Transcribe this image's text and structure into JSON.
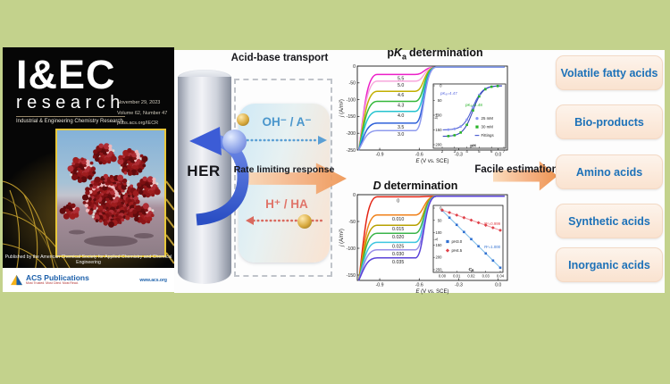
{
  "journal_cover": {
    "title": "I&EC",
    "subtitle": "research",
    "tagline": "Industrial & Engineering Chemistry Research",
    "issue_date": "November 29, 2023",
    "issue_volume": "Volume 62, Number 47",
    "issue_url": "pubs.acs.org/IECR",
    "published_line": "Published by the American Chemical Society for Applied Chemistry and Chemical Engineering",
    "publisher": "ACS Publications",
    "publisher_tagline": "Most Trusted. Most Cited. Most Read.",
    "website": "www.acs.org"
  },
  "scheme": {
    "electrode_label": "HER",
    "transport_title": "Acid-base transport",
    "response_label": "Rate limiting response",
    "base_pair": "OH⁻ / A⁻",
    "acid_pair": "H⁺ / HA",
    "estimation_label": "Facile estimation"
  },
  "chart_titles": {
    "pka_prefix": "p",
    "pka_k": "K",
    "pka_sub": "a",
    "pka_rest": "determination",
    "d_italic": "D",
    "d_rest": "determination"
  },
  "applications": [
    "Volatile fatty acids",
    "Bio-products",
    "Amino acids",
    "Synthetic acids",
    "Inorganic acids"
  ],
  "palette": {
    "background": "#c3d28c",
    "panel": "#fdfdfd",
    "app_box_fill": "#fae2cf",
    "app_box_text": "#1c71b8",
    "orange_arrow": "#f5b284",
    "base_text": "#4a96cc",
    "acid_text": "#e0756a",
    "her_arrow_blue": "#2b4fc4",
    "cover_gold": "#e8c73a"
  },
  "chart_data": [
    {
      "id": "pka-determination",
      "type": "line",
      "title": "pKa determination",
      "xlabel_italic": "E",
      "xlabel_rest": " (V vs. SCE)",
      "ylabel_italic": "j",
      "ylabel_rest": " (A/m²)",
      "xlim": [
        -1.07,
        0.07
      ],
      "ylim": [
        -250,
        0
      ],
      "xticks": [
        {
          "v": -0.9,
          "t": "-0.9"
        },
        {
          "v": -0.6,
          "t": "-0.6"
        },
        {
          "v": -0.3,
          "t": "-0.3"
        },
        {
          "v": 0.0,
          "t": "0.0"
        }
      ],
      "yticks": [
        0,
        -50,
        -100,
        -150,
        -200,
        -250
      ],
      "limit_current_top": -3,
      "series_note": "curve labels are solution pH; plateau = limiting current density A/m2",
      "series": [
        {
          "label": "5.5",
          "plateau": -25,
          "color": "#ec1fc8"
        },
        {
          "label": "5.0",
          "plateau": -45,
          "color": "#f8a8dc"
        },
        {
          "label": "4.6",
          "plateau": -75,
          "color": "#c3af00"
        },
        {
          "label": "4.3",
          "plateau": -105,
          "color": "#35b83a"
        },
        {
          "label": "4.0",
          "plateau": -135,
          "color": "#25c3cf"
        },
        {
          "label": "3.5",
          "plateau": -170,
          "color": "#2f62d9"
        },
        {
          "label": "3.0",
          "plateau": -192,
          "color": "#8f9bee"
        }
      ],
      "inset": {
        "xlabel": "pH",
        "ylabel_main": "j",
        "ylabel_sub": "0.5",
        "xlim": [
          2,
          7
        ],
        "ylim_down": [
          0,
          200
        ],
        "xticks": [
          2,
          3,
          4,
          5,
          6,
          7
        ],
        "yticks": [
          0,
          50,
          100,
          150,
          200
        ],
        "annotations": [
          {
            "text": "pKₐ=4.47",
            "color": "#5a6ae0"
          },
          {
            "text": "pKₐ=4.48",
            "color": "#2db52d"
          }
        ],
        "legend": [
          {
            "label": "25 mM",
            "marker": "circle",
            "color": "#8a97f2"
          },
          {
            "label": "30 mM",
            "marker": "square",
            "color": "#28b428"
          },
          {
            "label": "Fittings",
            "marker": "line",
            "color": "#4f5fd0"
          }
        ],
        "series": [
          {
            "name": "25 mM",
            "plateau": 150,
            "pKa": 4.47,
            "marker": "circle",
            "marker_color": "#8a97f2",
            "line_color": "#4f5fd0"
          },
          {
            "name": "30 mM",
            "plateau": 172,
            "pKa": 4.48,
            "marker": "square",
            "marker_color": "#28b428",
            "line_color": "#3a4ab8"
          }
        ],
        "marker_pH": [
          2.5,
          3.0,
          3.5,
          4.0,
          4.5,
          5.0,
          5.5,
          6.0,
          6.5
        ]
      }
    },
    {
      "id": "d-determination",
      "type": "line",
      "title": "D determination",
      "xlabel_italic": "E",
      "xlabel_rest": " (V vs. SCE)",
      "ylabel_italic": "j",
      "ylabel_rest": " (A/m²)",
      "xlim": [
        -1.07,
        0.07
      ],
      "ylim": [
        -160,
        0
      ],
      "xticks": [
        {
          "v": -0.9,
          "t": "-0.9"
        },
        {
          "v": -0.6,
          "t": "-0.6"
        },
        {
          "v": -0.3,
          "t": "-0.3"
        },
        {
          "v": 0.0,
          "t": "0.0"
        }
      ],
      "yticks": [
        0,
        -50,
        -100,
        -150
      ],
      "limit_current_top": -3,
      "series_note": "curve labels are buffer concentration (M)",
      "series": [
        {
          "label": "0",
          "plateau": -4,
          "color": "#e42313"
        },
        {
          "label": "0.010",
          "plateau": -38,
          "color": "#f08019"
        },
        {
          "label": "0.015",
          "plateau": -57,
          "color": "#b7a100"
        },
        {
          "label": "0.020",
          "plateau": -72,
          "color": "#3bb54a"
        },
        {
          "label": "0.025",
          "plateau": -89,
          "color": "#3fc6e0"
        },
        {
          "label": "0.030",
          "plateau": -103,
          "color": "#9a8fe8"
        },
        {
          "label": "0.035",
          "plateau": -118,
          "color": "#5a43d8"
        }
      ],
      "inset": {
        "xlabel_main": "C",
        "xlabel_sub": "B",
        "ylabel_main": "j",
        "ylabel_sub": "L",
        "xlim": [
          0,
          0.04
        ],
        "ylim_down": [
          0,
          250
        ],
        "xticks": [
          "0.00",
          "0.01",
          "0.02",
          "0.03",
          "0.04"
        ],
        "yticks": [
          0,
          50,
          100,
          150,
          200,
          250
        ],
        "series": [
          {
            "name": "pH3.0",
            "intercept": 10,
            "slope": 5800,
            "marker": "square",
            "marker_color": "#2f6fd0",
            "line_color": "#85c0ea",
            "r2": "R²=1.000",
            "r2_color": "#2f6fd0"
          },
          {
            "name": "pH4.5",
            "intercept": 8,
            "slope": 2050,
            "marker": "diamond",
            "marker_color": "#e04048",
            "line_color": "#f0a0a8",
            "r2": "R²=0.999",
            "r2_color": "#e04048"
          }
        ],
        "marker_step": 0.005
      }
    }
  ]
}
